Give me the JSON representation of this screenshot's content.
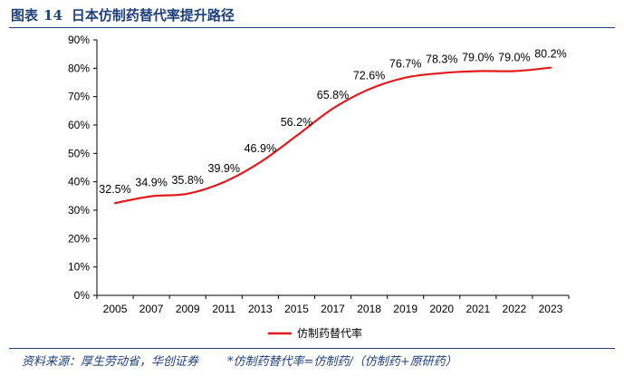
{
  "figure": {
    "label": "图表",
    "number": "14",
    "title": "日本仿制药替代率提升路径"
  },
  "footer": {
    "source": "资料来源：厚生劳动省，华创证券",
    "note": "*仿制药替代率=仿制药/（仿制药+原研药）"
  },
  "colors": {
    "line": "#e31a1c",
    "header": "#1f3f7a"
  },
  "chart_data": {
    "type": "line",
    "categories": [
      "2005",
      "2007",
      "2009",
      "2011",
      "2013",
      "2015",
      "2017",
      "2018",
      "2019",
      "2020",
      "2021",
      "2022",
      "2023"
    ],
    "series": [
      {
        "name": "仿制药替代率",
        "values": [
          32.5,
          34.9,
          35.8,
          39.9,
          46.9,
          56.2,
          65.8,
          72.6,
          76.7,
          78.3,
          79.0,
          79.0,
          80.2
        ],
        "labels": [
          "32.5%",
          "34.9%",
          "35.8%",
          "39.9%",
          "46.9%",
          "56.2%",
          "65.8%",
          "72.6%",
          "76.7%",
          "78.3%",
          "79.0%",
          "79.0%",
          "80.2%"
        ]
      }
    ],
    "ylim": [
      0,
      90
    ],
    "yticks": [
      "0%",
      "10%",
      "20%",
      "30%",
      "40%",
      "50%",
      "60%",
      "70%",
      "80%",
      "90%"
    ],
    "grid": false,
    "legend": "bottom-center"
  }
}
